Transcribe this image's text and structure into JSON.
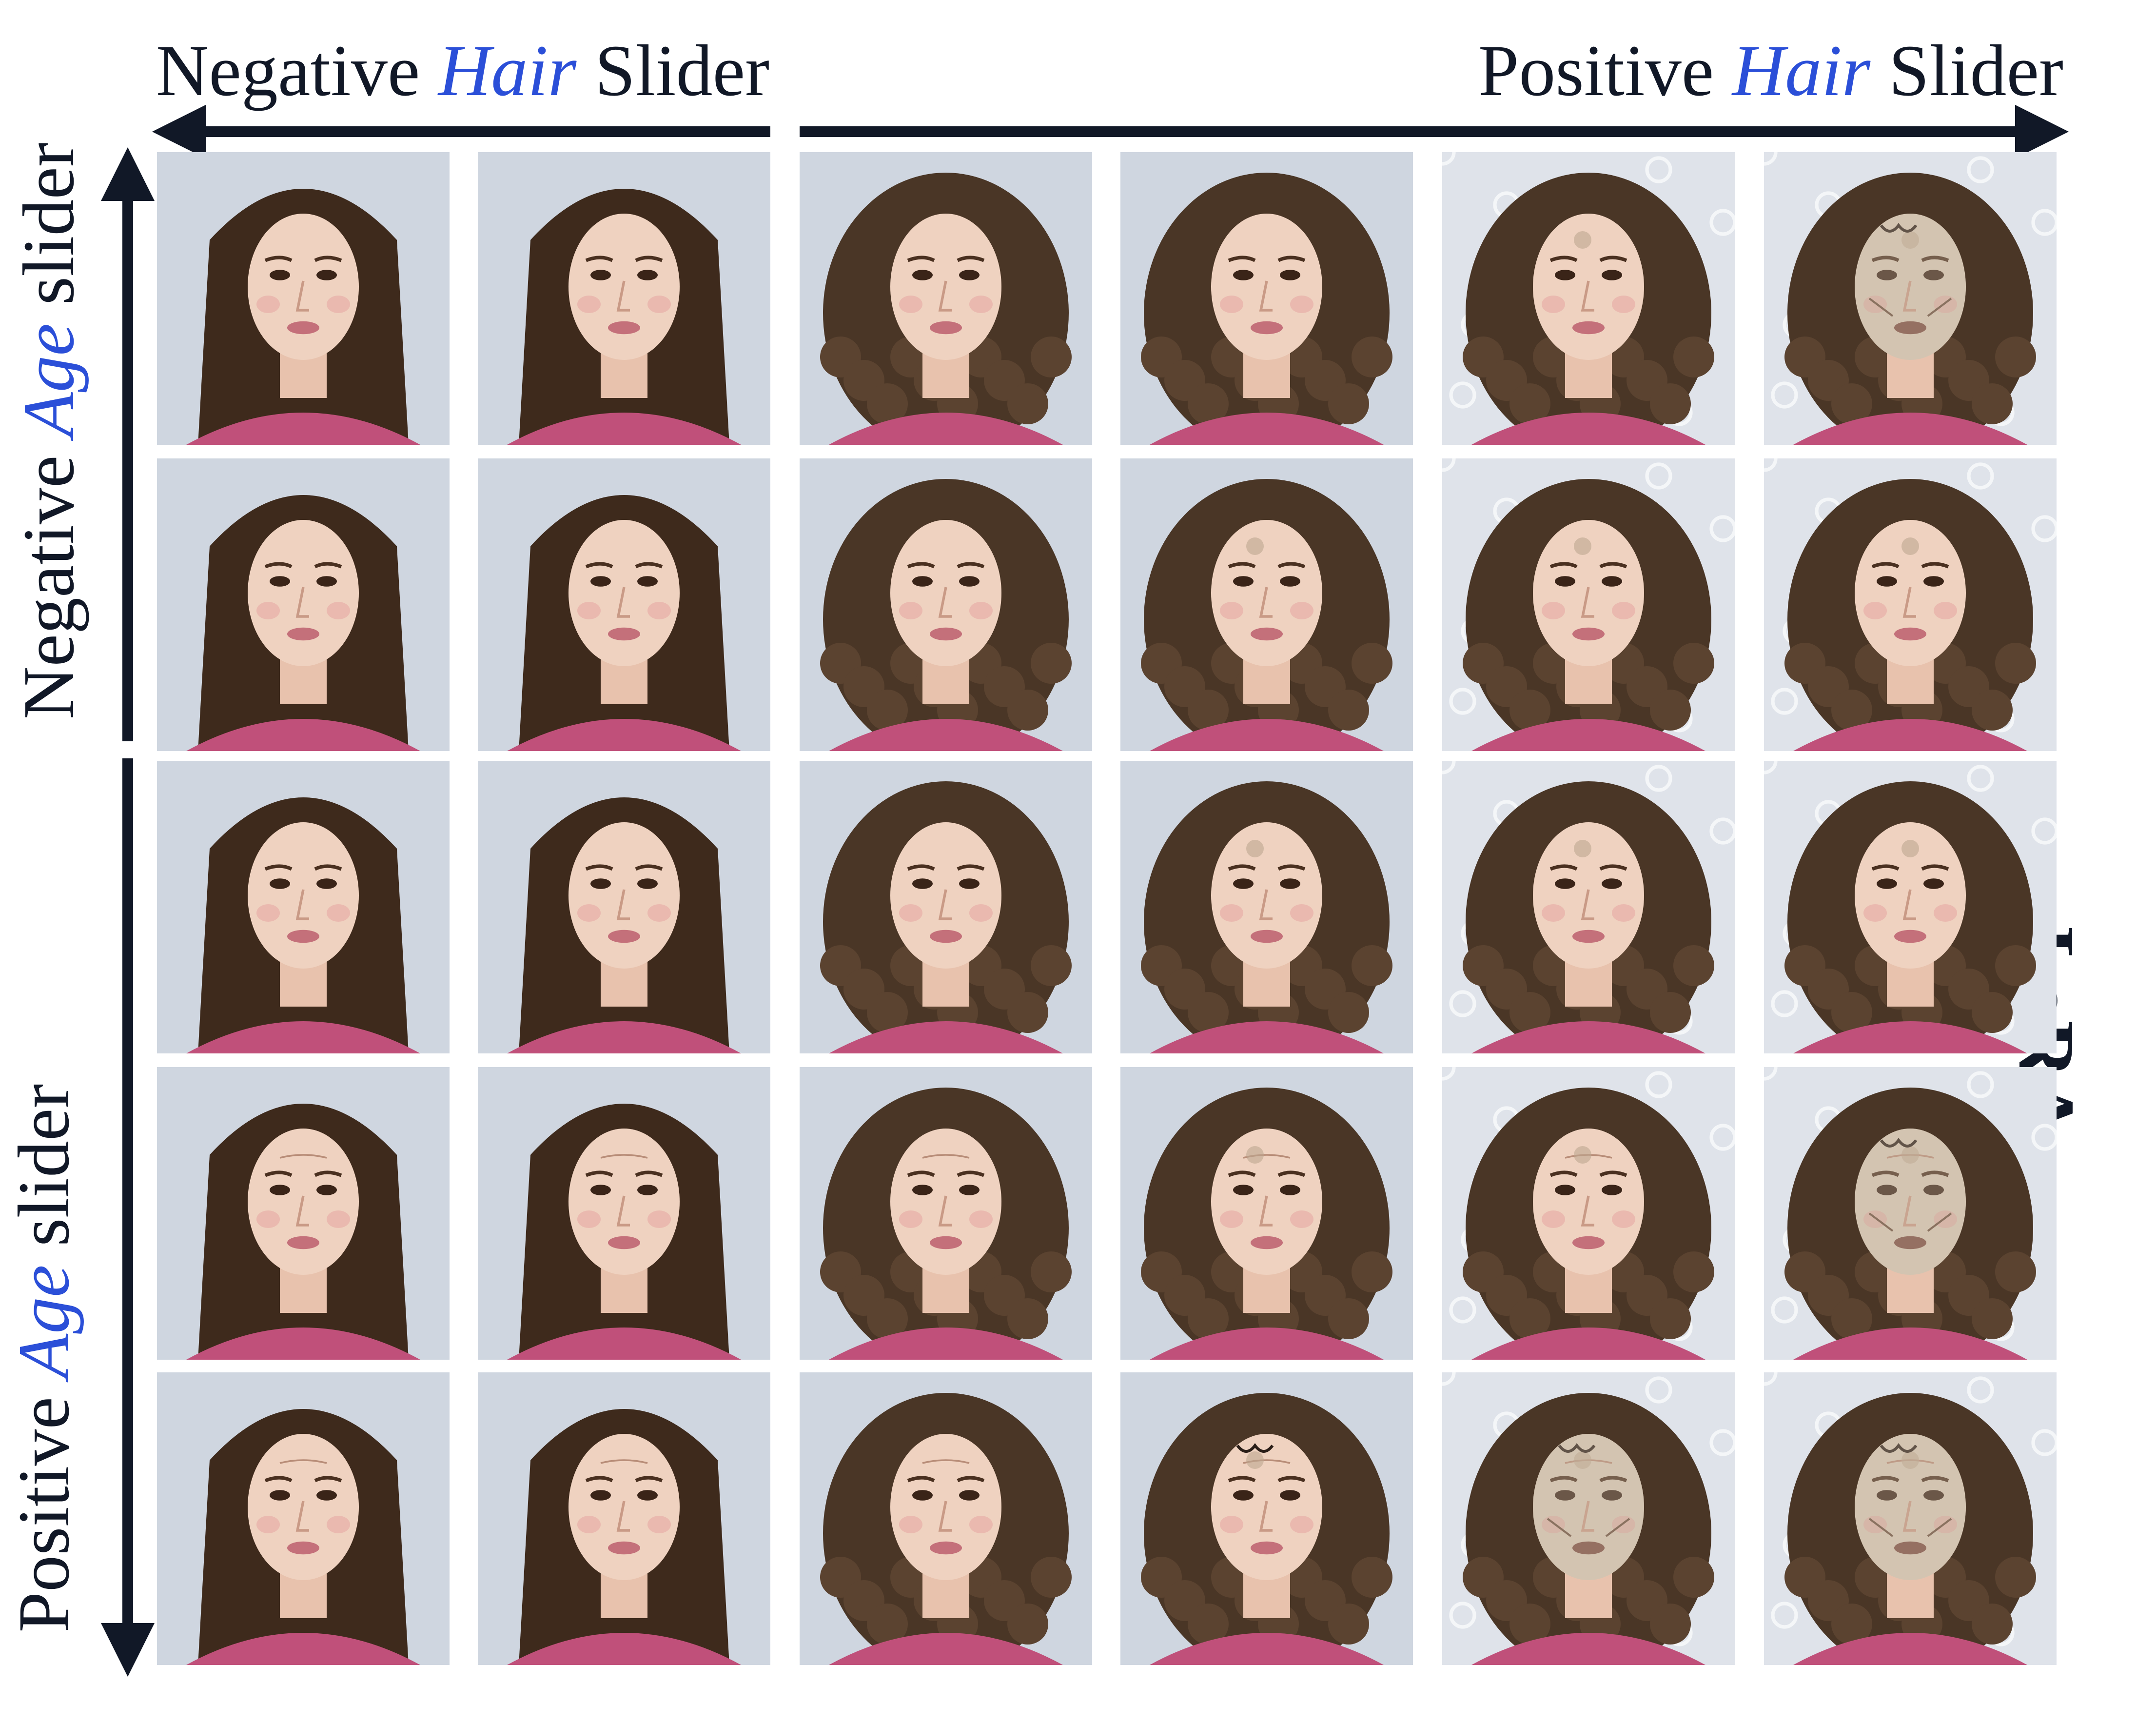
{
  "labels": {
    "neg_hair_prefix": "Negative",
    "neg_hair_kw": "Hair",
    "neg_hair_suffix": "Slider",
    "pos_hair_prefix": "Positive",
    "pos_hair_kw": "Hair",
    "pos_hair_suffix": "Slider",
    "neg_age_prefix": "Negative",
    "neg_age_kw": "Age",
    "neg_age_suffix": "slider",
    "pos_age_prefix": "Positive",
    "pos_age_kw": "Age",
    "pos_age_suffix": "slider",
    "lora": "LoRA"
  },
  "colors": {
    "keyword": "#2b4fd8",
    "text": "#111827",
    "arrow": "#111827"
  },
  "grid": {
    "rows": 5,
    "cols": 6,
    "hair_style": [
      "straight",
      "straight",
      "curly",
      "curly",
      "curly",
      "curly"
    ],
    "artifact_level": [
      [
        0,
        0,
        0,
        0,
        1,
        3
      ],
      [
        0,
        0,
        0,
        1,
        1,
        1
      ],
      [
        0,
        0,
        0,
        1,
        1,
        1
      ],
      [
        0,
        0,
        0,
        1,
        1,
        3
      ],
      [
        0,
        0,
        0,
        2,
        3,
        3
      ]
    ]
  }
}
